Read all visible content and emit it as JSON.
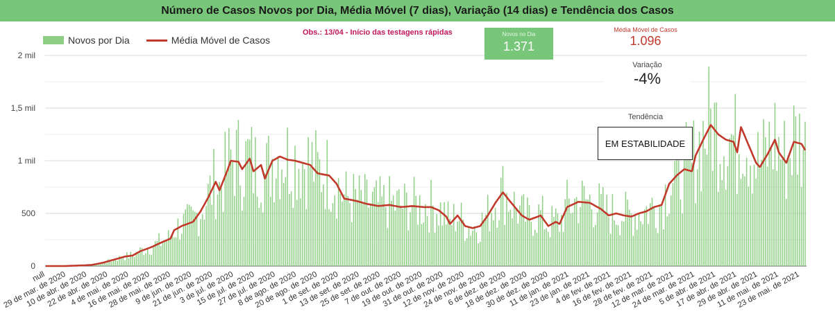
{
  "title": "Número de Casos Novos por Dia, Média Móvel (7 dias), Variação (14 dias) e Tendência dos Casos",
  "legend": {
    "bars": "Novos por Dia",
    "line": "Média Móvel de Casos"
  },
  "obs": "Obs.: 13/04 - Início das testagens rápidas",
  "kpi_new": {
    "label": "Novos no Dia",
    "value": "1.371"
  },
  "kpi_ma": {
    "label": "Média Móvel de Casos",
    "value": "1.096"
  },
  "kpi_var": {
    "label": "Variação",
    "value": "-4%"
  },
  "kpi_trend": {
    "label": "Tendência",
    "value": "EM ESTABILIDADE"
  },
  "colors": {
    "header": "#78c679",
    "bars": "#8fcf85",
    "line": "#c0392b"
  },
  "chart_data": {
    "type": "bar",
    "ylim": [
      0,
      2000
    ],
    "y_ticks": [
      {
        "value": 0,
        "label": "0"
      },
      {
        "value": 500,
        "label": "500"
      },
      {
        "value": 1000,
        "label": "1 mil"
      },
      {
        "value": 1500,
        "label": "1,5 mil"
      },
      {
        "value": 2000,
        "label": "2 mil"
      }
    ],
    "x_tick_labels": [
      "null",
      "29 de mar. de 2020",
      "10 de abr. de 2020",
      "22 de abr. de 2020",
      "4 de mai. de 2020",
      "16 de mai. de 2020",
      "28 de mai. de 2020",
      "9 de jun. de 2020",
      "21 de jun. de 2020",
      "3 de jul. de 2020",
      "15 de jul. de 2020",
      "27 de jul. de 2020",
      "8 de ago. de 2020",
      "20 de ago. de 2020",
      "1 de set. de 2020",
      "13 de set. de 2020",
      "25 de set. de 2020",
      "7 de out. de 2020",
      "19 de out. de 2020",
      "31 de out. de 2020",
      "12 de nov. de 2020",
      "24 de nov. de 2020",
      "6 de dez. de 2020",
      "18 de dez. de 2020",
      "30 de dez. de 2020",
      "11 de jan. de 2021",
      "23 de jan. de 2021",
      "4 de fev. de 2021",
      "16 de fev. de 2021",
      "28 de fev. de 2021",
      "12 de mar. de 2021",
      "24 de mar. de 2021",
      "5 de abr. de 2021",
      "17 de abr. de 2021",
      "29 de abr. de 2021",
      "11 de mai. de 2021",
      "23 de mai. de 2021"
    ],
    "moving_average_keypoints": [
      [
        0,
        0
      ],
      [
        10,
        0
      ],
      [
        18,
        5
      ],
      [
        24,
        10
      ],
      [
        30,
        30
      ],
      [
        36,
        60
      ],
      [
        42,
        90
      ],
      [
        46,
        100
      ],
      [
        50,
        140
      ],
      [
        56,
        180
      ],
      [
        62,
        230
      ],
      [
        66,
        260
      ],
      [
        68,
        340
      ],
      [
        72,
        380
      ],
      [
        78,
        420
      ],
      [
        82,
        520
      ],
      [
        86,
        650
      ],
      [
        90,
        800
      ],
      [
        92,
        720
      ],
      [
        96,
        900
      ],
      [
        98,
        1000
      ],
      [
        102,
        990
      ],
      [
        104,
        920
      ],
      [
        108,
        1020
      ],
      [
        110,
        900
      ],
      [
        114,
        960
      ],
      [
        116,
        830
      ],
      [
        120,
        1000
      ],
      [
        124,
        1040
      ],
      [
        128,
        1010
      ],
      [
        132,
        1000
      ],
      [
        136,
        980
      ],
      [
        140,
        960
      ],
      [
        144,
        880
      ],
      [
        150,
        860
      ],
      [
        154,
        780
      ],
      [
        158,
        640
      ],
      [
        164,
        620
      ],
      [
        170,
        590
      ],
      [
        176,
        570
      ],
      [
        182,
        580
      ],
      [
        188,
        560
      ],
      [
        194,
        570
      ],
      [
        200,
        560
      ],
      [
        204,
        560
      ],
      [
        208,
        530
      ],
      [
        212,
        470
      ],
      [
        214,
        400
      ],
      [
        218,
        480
      ],
      [
        222,
        380
      ],
      [
        226,
        360
      ],
      [
        230,
        380
      ],
      [
        234,
        480
      ],
      [
        238,
        600
      ],
      [
        242,
        700
      ],
      [
        246,
        610
      ],
      [
        252,
        480
      ],
      [
        256,
        440
      ],
      [
        262,
        480
      ],
      [
        266,
        380
      ],
      [
        270,
        420
      ],
      [
        272,
        400
      ],
      [
        276,
        560
      ],
      [
        282,
        610
      ],
      [
        288,
        600
      ],
      [
        294,
        540
      ],
      [
        298,
        480
      ],
      [
        302,
        500
      ],
      [
        306,
        480
      ],
      [
        310,
        470
      ],
      [
        314,
        500
      ],
      [
        318,
        520
      ],
      [
        322,
        560
      ],
      [
        326,
        580
      ],
      [
        330,
        780
      ],
      [
        334,
        860
      ],
      [
        338,
        920
      ],
      [
        342,
        900
      ],
      [
        344,
        1050
      ],
      [
        348,
        1200
      ],
      [
        352,
        1340
      ],
      [
        356,
        1250
      ],
      [
        360,
        1200
      ],
      [
        364,
        1180
      ],
      [
        366,
        1080
      ],
      [
        368,
        1320
      ],
      [
        372,
        1150
      ],
      [
        376,
        980
      ],
      [
        378,
        940
      ],
      [
        382,
        1060
      ],
      [
        386,
        1200
      ],
      [
        388,
        1080
      ],
      [
        392,
        980
      ],
      [
        396,
        1180
      ],
      [
        400,
        1160
      ],
      [
        402,
        1100
      ]
    ],
    "series_names": [
      "Novos por Dia",
      "Média Móvel de Casos"
    ],
    "grid": true,
    "legend_position": "top-left"
  }
}
